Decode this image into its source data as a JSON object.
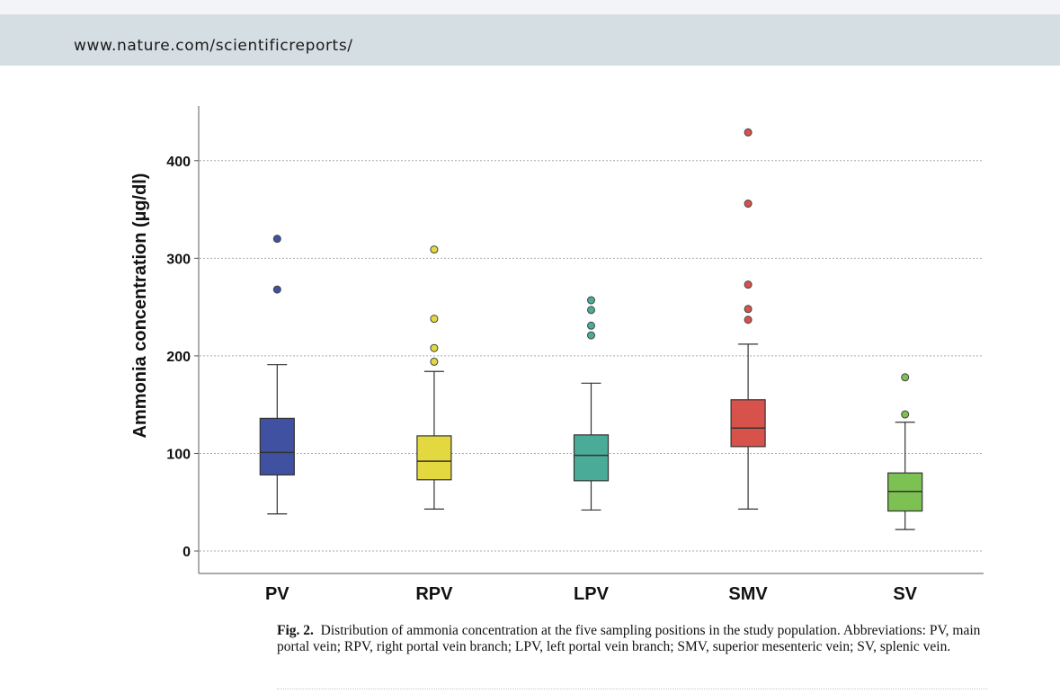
{
  "header": {
    "url": "www.nature.com/scientificreports/"
  },
  "chart_data": {
    "type": "box",
    "ylabel": "Ammonia concentration (µg/dl)",
    "xlabel": "",
    "ylim": [
      -23,
      456
    ],
    "yticks": [
      0,
      100,
      200,
      300,
      400
    ],
    "grid": "horizontal dotted",
    "categories": [
      "PV",
      "RPV",
      "LPV",
      "SMV",
      "SV"
    ],
    "boxes": [
      {
        "name": "PV",
        "color": "#3f51a0",
        "whisker_low": 38,
        "q1": 78,
        "median": 101,
        "q3": 136,
        "whisker_high": 191,
        "outliers": [
          268,
          320
        ]
      },
      {
        "name": "RPV",
        "color": "#e3d83f",
        "whisker_low": 43,
        "q1": 73,
        "median": 92,
        "q3": 118,
        "whisker_high": 184,
        "outliers": [
          194,
          208,
          238,
          309
        ]
      },
      {
        "name": "LPV",
        "color": "#4aab98",
        "whisker_low": 42,
        "q1": 72,
        "median": 98,
        "q3": 119,
        "whisker_high": 172,
        "outliers": [
          221,
          231,
          247,
          257
        ]
      },
      {
        "name": "SMV",
        "color": "#d8524c",
        "whisker_low": 43,
        "q1": 107,
        "median": 126,
        "q3": 155,
        "whisker_high": 212,
        "outliers": [
          237,
          248,
          273,
          356,
          429
        ]
      },
      {
        "name": "SV",
        "color": "#7dc152",
        "whisker_low": 22,
        "q1": 41,
        "median": 61,
        "q3": 80,
        "whisker_high": 132,
        "outliers": [
          140,
          178
        ]
      }
    ]
  },
  "caption": {
    "label": "Fig. 2",
    "text": "Distribution of ammonia concentration at the five sampling positions in the study population. Abbreviations: PV, main portal vein; RPV, right portal vein branch; LPV, left portal vein branch; SMV, superior mesenteric vein; SV, splenic vein."
  }
}
